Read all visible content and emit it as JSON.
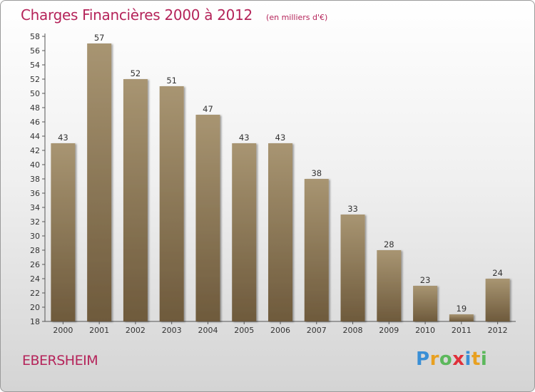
{
  "header": {
    "title": "Charges Financières 2000 à 2012",
    "subtitle": "(en milliers d'€)"
  },
  "footer": {
    "town": "EBERSHEIM",
    "logo_letters": [
      {
        "ch": "P",
        "color": "#3a8fd6"
      },
      {
        "ch": "r",
        "color": "#e8a020"
      },
      {
        "ch": "o",
        "color": "#5cb85c"
      },
      {
        "ch": "x",
        "color": "#e0303a"
      },
      {
        "ch": "i",
        "color": "#3a8fd6"
      },
      {
        "ch": "t",
        "color": "#e8a020"
      },
      {
        "ch": "i",
        "color": "#5cb85c"
      }
    ]
  },
  "chart_data": {
    "type": "bar",
    "categories": [
      "2000",
      "2001",
      "2002",
      "2003",
      "2004",
      "2005",
      "2006",
      "2007",
      "2008",
      "2009",
      "2010",
      "2011",
      "2012"
    ],
    "values": [
      43,
      57,
      52,
      51,
      47,
      43,
      43,
      38,
      33,
      28,
      23,
      19,
      24
    ],
    "ylim": [
      18,
      58
    ],
    "yticks": [
      18,
      20,
      22,
      24,
      26,
      28,
      30,
      32,
      34,
      36,
      38,
      40,
      42,
      44,
      46,
      48,
      50,
      52,
      54,
      56,
      58
    ],
    "grid": false,
    "bar_color_top": "#a89572",
    "bar_color_bottom": "#6e5a3c",
    "label_color": "#333333"
  }
}
